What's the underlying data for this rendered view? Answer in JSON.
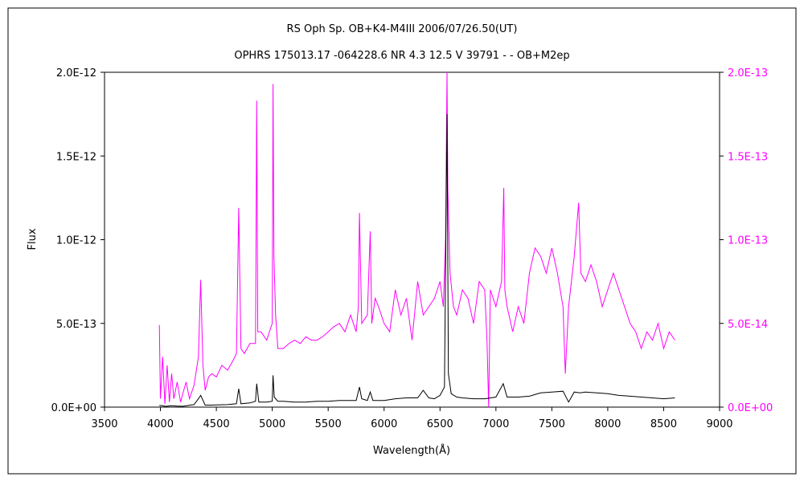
{
  "chart_data": {
    "type": "line",
    "title": "RS Oph    Sp. OB+K4-M4III    2006/07/26.50(UT)",
    "subtitle": "OPHRS 175013.17 -064228.6 NR 4.3 12.5 V 39791 - - OB+M2ep",
    "xlabel": "Wavelength(Å)",
    "ylabel": "Flux",
    "xlim": [
      3500,
      9000
    ],
    "ylim": [
      0,
      2e-12
    ],
    "y2lim": [
      0,
      2e-13
    ],
    "x_ticks": [
      "3500",
      "4000",
      "4500",
      "5000",
      "5500",
      "6000",
      "6500",
      "7000",
      "7500",
      "8000",
      "8500",
      "9000"
    ],
    "y_ticks": [
      "0.0E+00",
      "5.0E-13",
      "1.0E-12",
      "1.5E-12",
      "2.0E-12"
    ],
    "y2_ticks": [
      "0.0E+00",
      "5.0E-14",
      "1.0E-13",
      "1.5E-13",
      "2.0E-13"
    ],
    "grid": false,
    "legend": "none",
    "colors": {
      "primary": "#000000",
      "secondary": "#ff00ff",
      "border": "#000000"
    },
    "series": [
      {
        "axis": "left",
        "color": "#000000",
        "x": [
          3990,
          4050,
          4100,
          4150,
          4200,
          4250,
          4300,
          4340,
          4360,
          4400,
          4450,
          4500,
          4600,
          4680,
          4700,
          4720,
          4800,
          4850,
          4861,
          4880,
          4950,
          5000,
          5007,
          5018,
          5050,
          5100,
          5200,
          5300,
          5400,
          5500,
          5600,
          5700,
          5750,
          5780,
          5800,
          5850,
          5876,
          5900,
          5950,
          6000,
          6100,
          6200,
          6300,
          6350,
          6400,
          6450,
          6500,
          6540,
          6563,
          6575,
          6600,
          6650,
          6700,
          6800,
          6900,
          7000,
          7065,
          7100,
          7200,
          7300,
          7400,
          7500,
          7600,
          7650,
          7700,
          7750,
          7800,
          7900,
          8000,
          8100,
          8200,
          8300,
          8400,
          8500,
          8600
        ],
        "y": [
          1e-14,
          5e-15,
          8e-15,
          6e-15,
          5e-15,
          1e-14,
          1.5e-14,
          5e-14,
          7e-14,
          1.2e-14,
          1.2e-14,
          1.3e-14,
          1.5e-14,
          2e-14,
          1.1e-13,
          2e-14,
          2.5e-14,
          3.5e-14,
          1.4e-13,
          3e-14,
          3e-14,
          3.5e-14,
          1.9e-13,
          6e-14,
          3.5e-14,
          3.5e-14,
          3e-14,
          3e-14,
          3.5e-14,
          3.5e-14,
          4e-14,
          4e-14,
          4e-14,
          1.2e-13,
          5e-14,
          4e-14,
          9e-14,
          4e-14,
          4e-14,
          4e-14,
          5e-14,
          5.5e-14,
          5.5e-14,
          1e-13,
          5.5e-14,
          5e-14,
          7e-14,
          1.2e-13,
          1.75e-12,
          2e-13,
          8e-14,
          6e-14,
          5.5e-14,
          5e-14,
          5e-14,
          6e-14,
          1.4e-13,
          6e-14,
          6e-14,
          6.5e-14,
          8.5e-14,
          9e-14,
          9.5e-14,
          3e-14,
          9e-14,
          8.5e-14,
          9e-14,
          8.5e-14,
          8e-14,
          7e-14,
          6.5e-14,
          6e-14,
          5.5e-14,
          5e-14,
          5.5e-14
        ]
      },
      {
        "axis": "right",
        "color": "#ff00ff",
        "x": [
          3990,
          4000,
          4020,
          4040,
          4060,
          4080,
          4100,
          4120,
          4150,
          4180,
          4200,
          4230,
          4260,
          4300,
          4340,
          4360,
          4380,
          4400,
          4430,
          4460,
          4500,
          4550,
          4600,
          4650,
          4680,
          4700,
          4720,
          4750,
          4800,
          4850,
          4861,
          4870,
          4900,
          4950,
          5000,
          5007,
          5015,
          5030,
          5050,
          5100,
          5150,
          5200,
          5250,
          5300,
          5350,
          5400,
          5450,
          5500,
          5550,
          5600,
          5650,
          5700,
          5750,
          5770,
          5780,
          5800,
          5850,
          5876,
          5890,
          5920,
          5950,
          6000,
          6050,
          6100,
          6150,
          6200,
          6250,
          6300,
          6350,
          6400,
          6450,
          6500,
          6530,
          6550,
          6563,
          6570,
          6590,
          6620,
          6650,
          6700,
          6750,
          6800,
          6850,
          6900,
          6920,
          6935,
          6950,
          7000,
          7050,
          7070,
          7080,
          7100,
          7150,
          7200,
          7250,
          7300,
          7350,
          7400,
          7450,
          7500,
          7550,
          7600,
          7620,
          7650,
          7700,
          7740,
          7760,
          7800,
          7850,
          7900,
          7950,
          8000,
          8050,
          8100,
          8150,
          8200,
          8250,
          8300,
          8350,
          8400,
          8450,
          8500,
          8550,
          8600
        ],
        "y": [
          4.9e-14,
          5e-15,
          3e-14,
          2e-15,
          2.5e-14,
          3e-15,
          2e-14,
          5e-15,
          1.5e-14,
          3e-15,
          8e-15,
          1.5e-14,
          5e-15,
          1.3e-14,
          3e-14,
          7.6e-14,
          2.5e-14,
          1e-14,
          1.8e-14,
          2e-14,
          1.8e-14,
          2.5e-14,
          2.2e-14,
          2.8e-14,
          3.2e-14,
          1.19e-13,
          3.5e-14,
          3.2e-14,
          3.8e-14,
          3.8e-14,
          1.83e-13,
          4.5e-14,
          4.5e-14,
          4e-14,
          5e-14,
          1.93e-13,
          9e-14,
          5.5e-14,
          3.5e-14,
          3.5e-14,
          3.8e-14,
          4e-14,
          3.8e-14,
          4.2e-14,
          4e-14,
          4e-14,
          4.2e-14,
          4.5e-14,
          4.8e-14,
          5e-14,
          4.5e-14,
          5.5e-14,
          4.5e-14,
          6e-14,
          1.16e-13,
          5e-14,
          5.5e-14,
          1.05e-13,
          5e-14,
          6.5e-14,
          6e-14,
          5e-14,
          4.5e-14,
          7e-14,
          5.5e-14,
          6.5e-14,
          4e-14,
          7.5e-14,
          5.5e-14,
          6e-14,
          6.5e-14,
          7.5e-14,
          6e-14,
          1e-13,
          2e-13,
          1.3e-13,
          8e-14,
          6e-14,
          5.5e-14,
          7e-14,
          6.5e-14,
          5e-14,
          7.5e-14,
          7e-14,
          4e-14,
          0.0,
          7e-14,
          6e-14,
          7.5e-14,
          1.31e-13,
          7e-14,
          6e-14,
          4.5e-14,
          6e-14,
          5e-14,
          8e-14,
          9.5e-14,
          9e-14,
          8e-14,
          9.5e-14,
          8e-14,
          6e-14,
          2e-14,
          6e-14,
          9e-14,
          1.22e-13,
          8e-14,
          7.5e-14,
          8.5e-14,
          7.5e-14,
          6e-14,
          7e-14,
          8e-14,
          7e-14,
          6e-14,
          5e-14,
          4.5e-14,
          3.5e-14,
          4.5e-14,
          4e-14,
          5e-14,
          3.5e-14,
          4.5e-14,
          4e-14
        ]
      }
    ]
  }
}
